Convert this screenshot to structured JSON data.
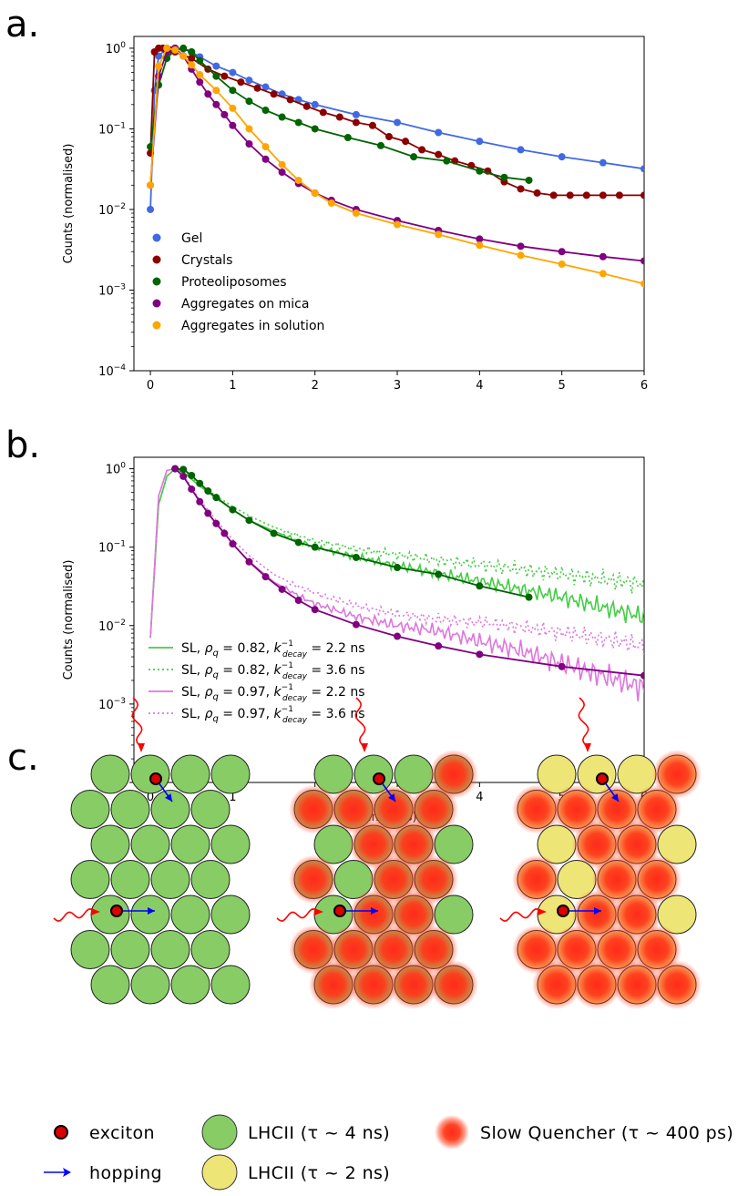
{
  "panels": {
    "a_label": "a.",
    "b_label": "b.",
    "c_label": "c."
  },
  "chart_data": [
    {
      "type": "scatter",
      "panel": "a",
      "title": "",
      "xlabel": "",
      "ylabel": "Counts (normalised)",
      "xlim": [
        -0.2,
        6
      ],
      "ylim": [
        0.0001,
        1.4
      ],
      "yscale": "log",
      "xticks": [
        0,
        1,
        2,
        3,
        4,
        5,
        6
      ],
      "yticks": [
        "10^-4",
        "10^-3",
        "10^-2",
        "10^-1",
        "10^0"
      ],
      "legend_position": "lower-left",
      "series": [
        {
          "name": "Gel",
          "color": "#4169e1",
          "x": [
            0.0,
            0.05,
            0.1,
            0.2,
            0.3,
            0.4,
            0.5,
            0.6,
            0.8,
            1.0,
            1.2,
            1.4,
            1.6,
            1.8,
            2.0,
            2.5,
            3.0,
            3.5,
            4.0,
            4.5,
            5.0,
            5.5,
            6.0
          ],
          "y": [
            0.01,
            0.3,
            0.8,
            1.0,
            1.0,
            0.98,
            0.9,
            0.78,
            0.6,
            0.5,
            0.4,
            0.33,
            0.27,
            0.23,
            0.2,
            0.15,
            0.12,
            0.09,
            0.07,
            0.055,
            0.045,
            0.038,
            0.032
          ]
        },
        {
          "name": "Crystals",
          "color": "#8b0000",
          "x": [
            0.0,
            0.05,
            0.1,
            0.15,
            0.2,
            0.25,
            0.3,
            0.5,
            0.7,
            0.9,
            1.1,
            1.3,
            1.5,
            1.7,
            1.9,
            2.1,
            2.3,
            2.5,
            2.7,
            2.9,
            3.1,
            3.3,
            3.5,
            3.7,
            3.9,
            4.1,
            4.3,
            4.5,
            4.7,
            4.9,
            5.1,
            5.3,
            5.5,
            5.7,
            6.0
          ],
          "y": [
            0.05,
            0.9,
            1.0,
            1.0,
            0.98,
            0.95,
            0.9,
            0.75,
            0.55,
            0.45,
            0.38,
            0.32,
            0.27,
            0.23,
            0.19,
            0.16,
            0.14,
            0.12,
            0.11,
            0.08,
            0.07,
            0.055,
            0.048,
            0.04,
            0.035,
            0.03,
            0.022,
            0.018,
            0.016,
            0.015,
            0.015,
            0.015,
            0.015,
            0.015,
            0.015
          ]
        },
        {
          "name": "Proteoliposomes",
          "color": "#006400",
          "x": [
            0.0,
            0.1,
            0.2,
            0.3,
            0.4,
            0.5,
            0.6,
            0.8,
            1.0,
            1.2,
            1.4,
            1.6,
            1.8,
            2.0,
            2.4,
            2.8,
            3.2,
            3.6,
            4.0,
            4.3,
            4.6
          ],
          "y": [
            0.06,
            0.35,
            0.75,
            0.95,
            1.0,
            0.9,
            0.7,
            0.45,
            0.3,
            0.22,
            0.17,
            0.14,
            0.12,
            0.1,
            0.078,
            0.062,
            0.045,
            0.04,
            0.03,
            0.025,
            0.023
          ]
        },
        {
          "name": "Aggregates on mica",
          "color": "#800080",
          "x": [
            0.0,
            0.1,
            0.2,
            0.3,
            0.4,
            0.5,
            0.6,
            0.7,
            0.8,
            0.9,
            1.0,
            1.2,
            1.4,
            1.6,
            1.8,
            2.0,
            2.2,
            2.5,
            3.0,
            3.5,
            4.0,
            4.5,
            5.0,
            5.5,
            6.0
          ],
          "y": [
            0.02,
            0.45,
            0.9,
            1.0,
            0.8,
            0.55,
            0.38,
            0.27,
            0.2,
            0.15,
            0.11,
            0.065,
            0.042,
            0.029,
            0.021,
            0.016,
            0.013,
            0.01,
            0.0073,
            0.0055,
            0.0043,
            0.0035,
            0.003,
            0.0026,
            0.0023
          ]
        },
        {
          "name": "Aggregates in solution",
          "color": "#ffa500",
          "x": [
            0.0,
            0.1,
            0.2,
            0.3,
            0.4,
            0.5,
            0.6,
            0.8,
            1.0,
            1.2,
            1.4,
            1.6,
            1.8,
            2.0,
            2.2,
            2.5,
            3.0,
            3.5,
            4.0,
            4.5,
            5.0,
            5.5,
            6.0
          ],
          "y": [
            0.02,
            0.6,
            1.0,
            0.95,
            0.8,
            0.62,
            0.47,
            0.3,
            0.18,
            0.1,
            0.06,
            0.036,
            0.023,
            0.016,
            0.012,
            0.009,
            0.0065,
            0.0049,
            0.0036,
            0.0027,
            0.0021,
            0.0016,
            0.0012
          ]
        }
      ]
    },
    {
      "type": "line",
      "panel": "b",
      "title": "",
      "xlabel": "Time (ns)",
      "ylabel": "Counts (normalised)",
      "xlim": [
        -0.2,
        6
      ],
      "ylim": [
        0.0001,
        1.4
      ],
      "yscale": "log",
      "xticks": [
        0,
        1,
        2,
        3,
        4,
        5,
        6
      ],
      "yticks": [
        "10^-4",
        "10^-3",
        "10^-2",
        "10^-1",
        "10^0"
      ],
      "legend_position": "lower-left",
      "legend": [
        {
          "prefix": "SL, ",
          "rho": "0.82",
          "k": "2.2 ns",
          "style": "solid",
          "color": "#44cc44"
        },
        {
          "prefix": "SL, ",
          "rho": "0.82",
          "k": "3.6 ns",
          "style": "dotted",
          "color": "#44cc44"
        },
        {
          "prefix": "SL, ",
          "rho": "0.97",
          "k": "2.2 ns",
          "style": "solid",
          "color": "#dd77dd"
        },
        {
          "prefix": "SL, ",
          "rho": "0.97",
          "k": "3.6 ns",
          "style": "dotted",
          "color": "#dd77dd"
        }
      ],
      "simulations": [
        {
          "label": "SL, ρq = 0.82, k_decay^-1 = 2.2 ns",
          "color": "#44cc44",
          "style": "solid",
          "x": [
            0.0,
            0.1,
            0.2,
            0.3,
            0.4,
            0.6,
            0.8,
            1.0,
            1.2,
            1.5,
            1.8,
            2.0,
            2.5,
            3.0,
            3.5,
            4.0,
            4.5,
            5.0,
            5.5,
            6.0
          ],
          "y": [
            0.007,
            0.35,
            0.8,
            1.0,
            0.9,
            0.6,
            0.42,
            0.3,
            0.22,
            0.16,
            0.12,
            0.1,
            0.075,
            0.058,
            0.046,
            0.037,
            0.029,
            0.023,
            0.017,
            0.013
          ]
        },
        {
          "label": "SL, ρq = 0.82, k_decay^-1 = 3.6 ns",
          "color": "#44cc44",
          "style": "dotted",
          "x": [
            0.0,
            0.1,
            0.2,
            0.3,
            0.4,
            0.6,
            0.8,
            1.0,
            1.2,
            1.5,
            1.8,
            2.0,
            2.5,
            3.0,
            3.5,
            4.0,
            4.5,
            5.0,
            5.5,
            6.0
          ],
          "y": [
            0.007,
            0.35,
            0.8,
            1.0,
            0.92,
            0.63,
            0.45,
            0.33,
            0.25,
            0.18,
            0.14,
            0.12,
            0.095,
            0.08,
            0.068,
            0.06,
            0.052,
            0.045,
            0.039,
            0.034
          ]
        },
        {
          "label": "SL, ρq = 0.97, k_decay^-1 = 2.2 ns",
          "color": "#dd77dd",
          "style": "solid",
          "x": [
            0.0,
            0.1,
            0.2,
            0.3,
            0.4,
            0.5,
            0.6,
            0.8,
            1.0,
            1.2,
            1.5,
            1.8,
            2.0,
            2.5,
            3.0,
            3.5,
            4.0,
            4.5,
            5.0,
            5.5,
            6.0
          ],
          "y": [
            0.007,
            0.45,
            0.95,
            1.0,
            0.8,
            0.55,
            0.38,
            0.2,
            0.11,
            0.066,
            0.036,
            0.024,
            0.019,
            0.013,
            0.01,
            0.0085,
            0.0063,
            0.0048,
            0.0033,
            0.0023,
            0.0016
          ]
        },
        {
          "label": "SL, ρq = 0.97, k_decay^-1 = 3.6 ns",
          "color": "#dd77dd",
          "style": "dotted",
          "x": [
            0.0,
            0.1,
            0.2,
            0.3,
            0.4,
            0.5,
            0.6,
            0.8,
            1.0,
            1.2,
            1.5,
            1.8,
            2.0,
            2.5,
            3.0,
            3.5,
            4.0,
            4.5,
            5.0,
            5.5,
            6.0
          ],
          "y": [
            0.007,
            0.45,
            0.95,
            1.0,
            0.82,
            0.58,
            0.4,
            0.22,
            0.125,
            0.078,
            0.045,
            0.031,
            0.026,
            0.018,
            0.014,
            0.012,
            0.011,
            0.0095,
            0.0082,
            0.0068,
            0.0055
          ]
        }
      ],
      "experimental": [
        {
          "name": "Proteoliposomes",
          "color": "#006400",
          "x": [
            0.3,
            0.4,
            0.5,
            0.6,
            0.7,
            0.8,
            1.0,
            1.2,
            1.5,
            1.8,
            2.0,
            2.5,
            3.0,
            3.5,
            4.0,
            4.6
          ],
          "y": [
            1.0,
            0.98,
            0.82,
            0.65,
            0.52,
            0.43,
            0.3,
            0.22,
            0.15,
            0.115,
            0.1,
            0.074,
            0.055,
            0.045,
            0.032,
            0.023
          ]
        },
        {
          "name": "Aggregates on mica",
          "color": "#800080",
          "x": [
            0.3,
            0.4,
            0.5,
            0.6,
            0.7,
            0.8,
            0.9,
            1.0,
            1.2,
            1.4,
            1.6,
            1.8,
            2.0,
            2.5,
            3.0,
            3.5,
            4.0,
            5.0,
            6.0
          ],
          "y": [
            1.0,
            0.8,
            0.55,
            0.38,
            0.27,
            0.2,
            0.15,
            0.11,
            0.065,
            0.042,
            0.029,
            0.021,
            0.016,
            0.0103,
            0.0073,
            0.0055,
            0.0043,
            0.003,
            0.0023
          ]
        }
      ]
    }
  ],
  "diagram": {
    "legend": {
      "exciton": "exciton",
      "hopping": "hopping",
      "lhcii_4": "LHCII (τ ~ 4 ns)",
      "lhcii_2": "LHCII (τ ~ 2 ns)",
      "quencher": "Slow Quencher (τ ~ 400 ps)"
    },
    "colors": {
      "lhcii_4": "#88cc66",
      "lhcii_2": "#eee577",
      "quencher": "#ff2a1a",
      "exciton": "#dd0000",
      "hopping": "#0000ff",
      "photon": "#ff0000"
    },
    "lattice_rows": 7,
    "row_counts": [
      4,
      4,
      4,
      4,
      4,
      4,
      4
    ],
    "lattices": [
      {
        "base": "lhcii_4",
        "quenchers": []
      },
      {
        "base": "lhcii_4",
        "quenchers": [
          [
            0,
            3
          ],
          [
            1,
            0
          ],
          [
            1,
            1
          ],
          [
            1,
            2
          ],
          [
            1,
            3
          ],
          [
            2,
            1
          ],
          [
            2,
            2
          ],
          [
            3,
            0
          ],
          [
            3,
            2
          ],
          [
            3,
            3
          ],
          [
            4,
            1
          ],
          [
            4,
            2
          ],
          [
            5,
            0
          ],
          [
            5,
            1
          ],
          [
            5,
            2
          ],
          [
            5,
            3
          ],
          [
            6,
            0
          ],
          [
            6,
            1
          ],
          [
            6,
            2
          ],
          [
            6,
            3
          ]
        ]
      },
      {
        "base": "lhcii_2",
        "quenchers": [
          [
            0,
            3
          ],
          [
            1,
            0
          ],
          [
            1,
            1
          ],
          [
            1,
            2
          ],
          [
            1,
            3
          ],
          [
            2,
            1
          ],
          [
            2,
            2
          ],
          [
            3,
            0
          ],
          [
            3,
            2
          ],
          [
            3,
            3
          ],
          [
            4,
            1
          ],
          [
            4,
            2
          ],
          [
            5,
            0
          ],
          [
            5,
            1
          ],
          [
            5,
            2
          ],
          [
            5,
            3
          ],
          [
            6,
            0
          ],
          [
            6,
            1
          ],
          [
            6,
            2
          ],
          [
            6,
            3
          ]
        ]
      }
    ]
  }
}
